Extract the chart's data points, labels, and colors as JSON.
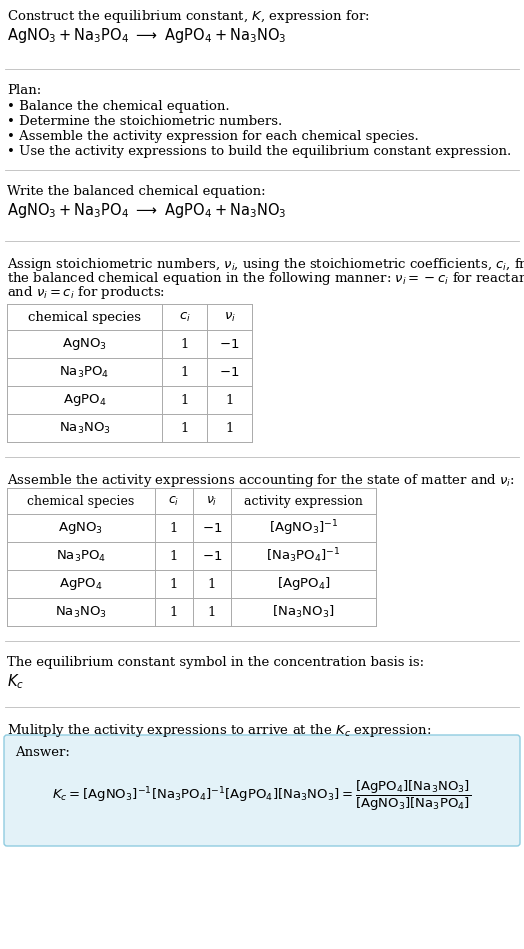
{
  "title_line1": "Construct the equilibrium constant, $K$, expression for:",
  "title_line2_plain": "AgNO_3 + Na_3PO_4  →  AgPO_4 + Na_3NO_3",
  "plan_header": "Plan:",
  "plan_items": [
    "• Balance the chemical equation.",
    "• Determine the stoichiometric numbers.",
    "• Assemble the activity expression for each chemical species.",
    "• Use the activity expressions to build the equilibrium constant expression."
  ],
  "balanced_eq_header": "Write the balanced chemical equation:",
  "stoich_intro_lines": [
    "Assign stoichiometric numbers, $\\nu_i$, using the stoichiometric coefficients, $c_i$, from",
    "the balanced chemical equation in the following manner: $\\nu_i = -c_i$ for reactants",
    "and $\\nu_i = c_i$ for products:"
  ],
  "table1_headers": [
    "chemical species",
    "$c_i$",
    "$\\nu_i$"
  ],
  "table1_rows": [
    [
      "$\\mathrm{AgNO_3}$",
      "1",
      "$-1$"
    ],
    [
      "$\\mathrm{Na_3PO_4}$",
      "1",
      "$-1$"
    ],
    [
      "$\\mathrm{AgPO_4}$",
      "1",
      "1"
    ],
    [
      "$\\mathrm{Na_3NO_3}$",
      "1",
      "1"
    ]
  ],
  "assemble_header": "Assemble the activity expressions accounting for the state of matter and $\\nu_i$:",
  "table2_headers": [
    "chemical species",
    "$c_i$",
    "$\\nu_i$",
    "activity expression"
  ],
  "table2_rows": [
    [
      "$\\mathrm{AgNO_3}$",
      "1",
      "$-1$",
      "$[\\mathrm{AgNO_3}]^{-1}$"
    ],
    [
      "$\\mathrm{Na_3PO_4}$",
      "1",
      "$-1$",
      "$[\\mathrm{Na_3PO_4}]^{-1}$"
    ],
    [
      "$\\mathrm{AgPO_4}$",
      "1",
      "1",
      "$[\\mathrm{AgPO_4}]$"
    ],
    [
      "$\\mathrm{Na_3NO_3}$",
      "1",
      "1",
      "$[\\mathrm{Na_3NO_3}]$"
    ]
  ],
  "kc_text": "The equilibrium constant symbol in the concentration basis is:",
  "kc_symbol": "$K_c$",
  "multiply_text": "Mulitply the activity expressions to arrive at the $K_c$ expression:",
  "answer_label": "Answer:",
  "bg_color": "#ffffff",
  "answer_box_color": "#e3f2f8",
  "answer_box_border": "#90cce0",
  "text_color": "#000000",
  "divider_color": "#bbbbbb",
  "table_border_color": "#aaaaaa"
}
